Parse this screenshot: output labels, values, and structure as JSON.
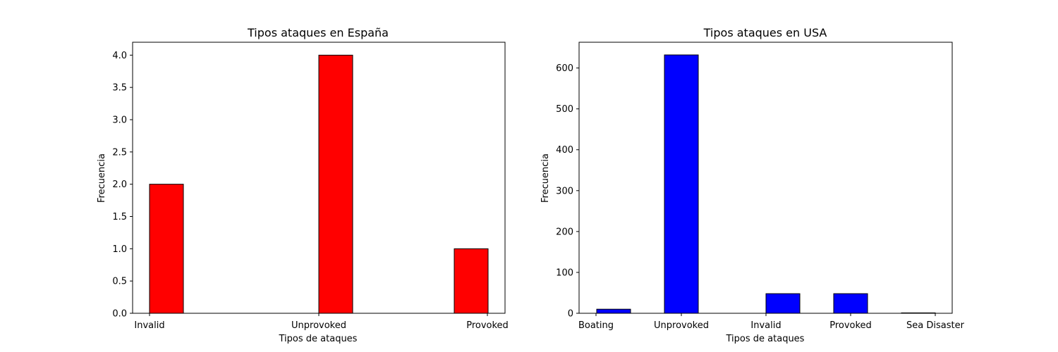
{
  "chart_data": [
    {
      "type": "bar",
      "title": "Tipos ataques en España",
      "xlabel": "Tipos de ataques",
      "ylabel": "Frecuencia",
      "categories": [
        "Invalid",
        "Unprovoked",
        "Provoked"
      ],
      "values": [
        2,
        4,
        1
      ],
      "ylim": [
        0,
        4.2
      ],
      "yticks": [
        "0.0",
        "0.5",
        "1.0",
        "1.5",
        "2.0",
        "2.5",
        "3.0",
        "3.5",
        "4.0"
      ],
      "grid": false,
      "color": "#ff0000"
    },
    {
      "type": "bar",
      "title": "Tipos ataques en USA",
      "xlabel": "Tipos de ataques",
      "ylabel": "Frecuencia",
      "categories": [
        "Boating",
        "Unprovoked",
        "Invalid",
        "Provoked",
        "Sea Disaster"
      ],
      "values": [
        10,
        632,
        48,
        48,
        1
      ],
      "ylim": [
        0,
        663
      ],
      "yticks": [
        "0",
        "100",
        "200",
        "300",
        "400",
        "500",
        "600"
      ],
      "grid": false,
      "color": "#0000ff"
    }
  ]
}
